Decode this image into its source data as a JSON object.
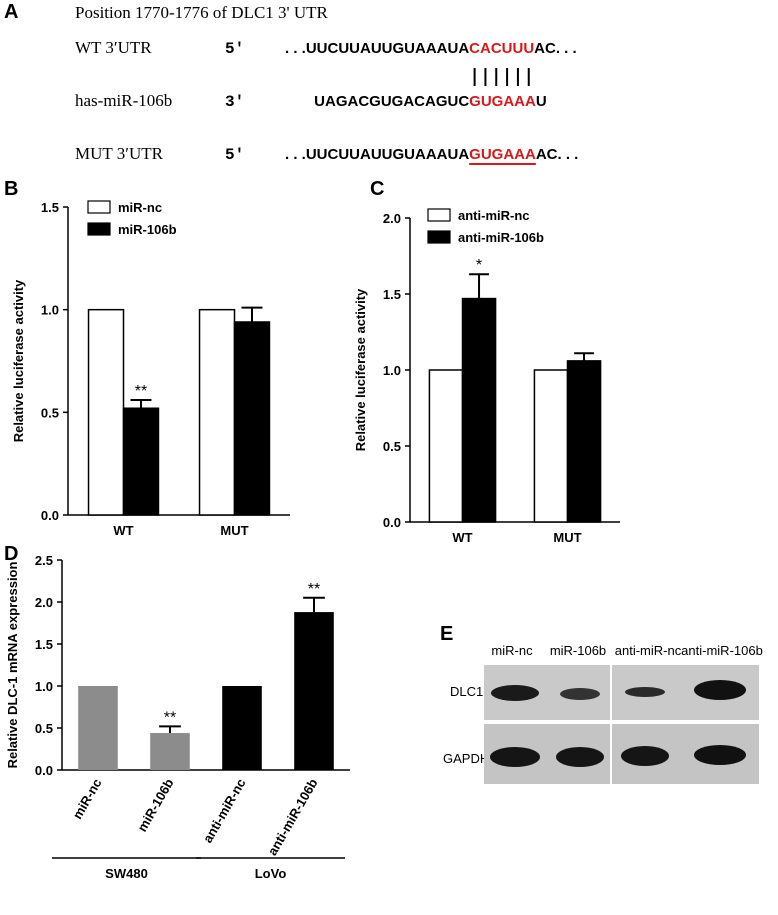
{
  "panel_a": {
    "label": "A",
    "title": "Position 1770-1776 of DLC1 3' UTR",
    "rows": [
      {
        "name": "WT 3′UTR",
        "end": "5'",
        "segments": [
          ". . .UUCUUAUUGUAAAUA",
          "CACUUU",
          "AC. . ."
        ]
      },
      {
        "name": "has-miR-106b",
        "end": "3'",
        "segments": [
          "UAGACGUGACAGUC",
          "GUGAAA",
          "U"
        ]
      },
      {
        "name": "MUT 3′UTR",
        "end": "5'",
        "segments": [
          ". . .UUCUUAUUGUAAAUA",
          "GUGAAA",
          "AC. . ."
        ]
      }
    ]
  },
  "chart_data": [
    {
      "type": "bar",
      "label": "B",
      "ylabel": "Relative luciferase  activity",
      "categories": [
        "WT",
        "MUT"
      ],
      "series": [
        {
          "name": "miR-nc",
          "color": "#ffffff",
          "values": [
            1.0,
            1.0
          ]
        },
        {
          "name": "miR-106b",
          "color": "#000000",
          "values": [
            0.52,
            0.94
          ],
          "errors": [
            0.04,
            0.07
          ],
          "significance": [
            "**",
            null
          ]
        }
      ],
      "ylim": [
        0,
        1.5
      ],
      "yticks": [
        {
          "value": 0,
          "label": "0.0"
        },
        0.5,
        {
          "value": 1,
          "label": "1.0"
        },
        1.5
      ]
    },
    {
      "type": "bar",
      "label": "C",
      "ylabel": "Relative luciferase  activity",
      "categories": [
        "WT",
        "MUT"
      ],
      "series": [
        {
          "name": "anti-miR-nc",
          "color": "#ffffff",
          "values": [
            1.0,
            1.0
          ]
        },
        {
          "name": "anti-miR-106b",
          "color": "#000000",
          "values": [
            1.47,
            1.06
          ],
          "errors": [
            0.16,
            0.05
          ],
          "significance": [
            "*",
            null
          ]
        }
      ],
      "ylim": [
        0,
        2
      ],
      "yticks": [
        {
          "value": 0,
          "label": "0.0"
        },
        0.5,
        {
          "value": 1,
          "label": "1.0"
        },
        1.5,
        {
          "value": 2,
          "label": "2.0"
        }
      ]
    },
    {
      "type": "bar",
      "label": "D",
      "ylabel": "Relative DLC-1 mRNA expression",
      "categories": [
        "miR-nc",
        "miR-106b",
        "anti-miR-nc",
        "anti-miR-106b"
      ],
      "values": [
        1.0,
        0.44,
        1.0,
        1.88
      ],
      "errors": [
        null,
        0.08,
        null,
        0.17
      ],
      "significance": [
        null,
        "**",
        null,
        "**"
      ],
      "colors": [
        "#8c8c8c",
        "#8c8c8c",
        "#000000",
        "#000000"
      ],
      "groups": [
        {
          "label": "SW480",
          "first": "miR-nc",
          "last": "miR-106b"
        },
        {
          "label": "LoVo",
          "first": "anti-miR-nc",
          "last": "anti-miR-106b"
        }
      ],
      "ylim": [
        0,
        2.5
      ],
      "yticks": [
        {
          "value": 0,
          "label": "0.0"
        },
        0.5,
        {
          "value": 1,
          "label": "1.0"
        },
        1.5,
        {
          "value": 2,
          "label": "2.0"
        },
        2.5
      ]
    }
  ],
  "panel_e": {
    "label": "E",
    "columns": [
      "miR-nc",
      "miR-106b",
      "anti-miR-nc",
      "anti-miR-106b"
    ],
    "rows": [
      "DLC1",
      "GAPDH"
    ]
  }
}
